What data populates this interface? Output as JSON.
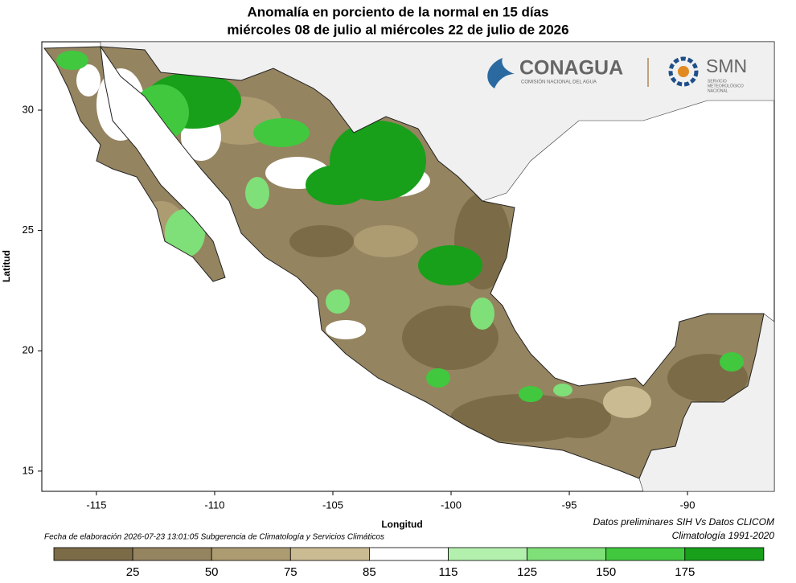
{
  "header": {
    "title": "Anomalía en porciento de la normal en 15 días",
    "subtitle": "miércoles 08 de julio al miércoles 22 de julio de 2026"
  },
  "logos": {
    "conagua": "CONAGUA",
    "conagua_sub": "COMISIÓN NACIONAL DEL AGUA",
    "smn": "SMN",
    "smn_sub": [
      "SERVICIO",
      "METEOROLÓGICO",
      "NACIONAL"
    ]
  },
  "map": {
    "xlabel": "Longitud",
    "ylabel": "Latitud",
    "xlim": [
      -117.31,
      -86.33
    ],
    "ylim": [
      14.16,
      32.84
    ],
    "xticks": [
      -115,
      -110,
      -105,
      -100,
      -95,
      -90
    ],
    "yticks": [
      15,
      20,
      25,
      30
    ]
  },
  "footer": {
    "left": "Fecha de elaboración 2026-07-23 13:01:05 Subgerencia de Climatología y Servicios Climáticos",
    "right1": "Datos preliminares SIH Vs Datos CLICOM",
    "right2": "Climatología 1991-2020"
  },
  "legend": {
    "colors": [
      "#7b6c47",
      "#958460",
      "#ad9c72",
      "#cbbb92",
      "#ffffff",
      "#b3f0ae",
      "#7fdf78",
      "#41c83f",
      "#18a01a"
    ],
    "bounds": [
      25,
      50,
      75,
      85,
      115,
      125,
      150,
      175
    ]
  }
}
